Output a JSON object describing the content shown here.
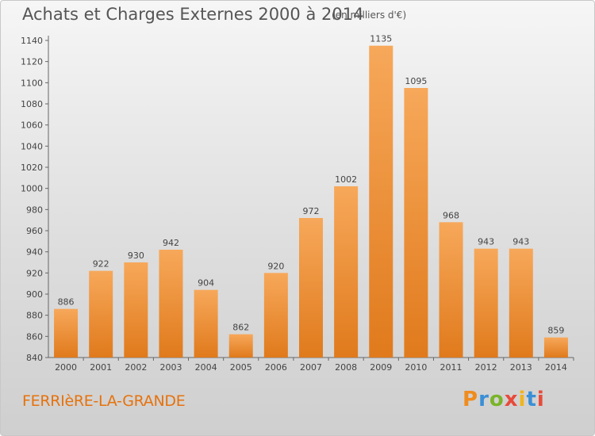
{
  "header": {
    "title": "Achats et Charges Externes 2000 à 2014",
    "unit": "(en milliers d'€)"
  },
  "footer": {
    "commune": "FERRIèRE-LA-GRANDE",
    "logo": {
      "text": "Proxiti",
      "letter_colors": [
        "#f08c1e",
        "#3a8fd6",
        "#7ab42a",
        "#e84a3a",
        "#f0b41e",
        "#3a8fd6",
        "#e84a3a"
      ]
    }
  },
  "colors": {
    "bar_light": "#f7a85a",
    "bar_dark": "#e07a1c",
    "axis": "#666666",
    "text": "#444444"
  },
  "chart_data": {
    "type": "bar",
    "title": "Achats et Charges Externes 2000 à 2014",
    "subtitle": "(en milliers d'€)",
    "xlabel": "",
    "ylabel": "",
    "categories": [
      "2000",
      "2001",
      "2002",
      "2003",
      "2004",
      "2005",
      "2006",
      "2007",
      "2008",
      "2009",
      "2010",
      "2011",
      "2012",
      "2013",
      "2014"
    ],
    "values": [
      886,
      922,
      930,
      942,
      904,
      862,
      920,
      972,
      1002,
      1135,
      1095,
      968,
      943,
      943,
      859
    ],
    "ylim": [
      840,
      1140
    ],
    "yticks": [
      840,
      860,
      880,
      900,
      920,
      940,
      960,
      980,
      1000,
      1020,
      1040,
      1060,
      1080,
      1100,
      1120,
      1140
    ],
    "grid": false,
    "data_labels": true
  }
}
